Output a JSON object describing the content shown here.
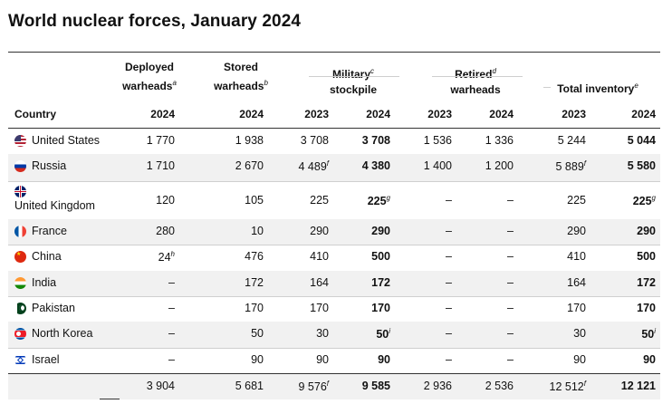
{
  "title": "World nuclear forces, January 2024",
  "headers": {
    "country": "Country",
    "deployed": {
      "line1": "Deployed",
      "line2": "warheads",
      "fn": "a"
    },
    "stored": {
      "line1": "Stored",
      "line2": "warheads",
      "fn": "b"
    },
    "military": {
      "line1": "Military",
      "fn": "c",
      "line2": "stockpile"
    },
    "retired": {
      "line1": "Retired",
      "fn": "d",
      "line2": "warheads"
    },
    "total": {
      "line1": "Total inventory",
      "fn": "e"
    }
  },
  "years": [
    "2024",
    "2024",
    "2023",
    "2024",
    "2023",
    "2024",
    "2023",
    "2024"
  ],
  "rows": [
    {
      "country": "United States",
      "flag": "us-flag-icon",
      "c": [
        [
          "1 770",
          ""
        ],
        [
          "1 938",
          ""
        ],
        [
          "3 708",
          ""
        ],
        [
          "3 708",
          ""
        ],
        [
          "1 536",
          ""
        ],
        [
          "1 336",
          ""
        ],
        [
          "5 244",
          ""
        ],
        [
          "5 044",
          ""
        ]
      ]
    },
    {
      "country": "Russia",
      "flag": "russia-flag-icon",
      "c": [
        [
          "1 710",
          ""
        ],
        [
          "2 670",
          ""
        ],
        [
          "4 489",
          "f"
        ],
        [
          "4 380",
          ""
        ],
        [
          "1 400",
          ""
        ],
        [
          "1 200",
          ""
        ],
        [
          "5 889",
          "f"
        ],
        [
          "5 580",
          ""
        ]
      ]
    },
    {
      "country": "United Kingdom",
      "flag": "uk-flag-icon",
      "c": [
        [
          "120",
          ""
        ],
        [
          "105",
          ""
        ],
        [
          "225",
          ""
        ],
        [
          "225",
          "g"
        ],
        [
          "–",
          ""
        ],
        [
          "–",
          ""
        ],
        [
          "225",
          ""
        ],
        [
          "225",
          "g"
        ]
      ]
    },
    {
      "country": "France",
      "flag": "france-flag-icon",
      "c": [
        [
          "280",
          ""
        ],
        [
          "10",
          ""
        ],
        [
          "290",
          ""
        ],
        [
          "290",
          ""
        ],
        [
          "–",
          ""
        ],
        [
          "–",
          ""
        ],
        [
          "290",
          ""
        ],
        [
          "290",
          ""
        ]
      ]
    },
    {
      "country": "China",
      "flag": "china-flag-icon",
      "c": [
        [
          "24",
          "h"
        ],
        [
          "476",
          ""
        ],
        [
          "410",
          ""
        ],
        [
          "500",
          ""
        ],
        [
          "–",
          ""
        ],
        [
          "–",
          ""
        ],
        [
          "410",
          ""
        ],
        [
          "500",
          ""
        ]
      ]
    },
    {
      "country": "India",
      "flag": "india-flag-icon",
      "c": [
        [
          "–",
          ""
        ],
        [
          "172",
          ""
        ],
        [
          "164",
          ""
        ],
        [
          "172",
          ""
        ],
        [
          "–",
          ""
        ],
        [
          "–",
          ""
        ],
        [
          "164",
          ""
        ],
        [
          "172",
          ""
        ]
      ]
    },
    {
      "country": "Pakistan",
      "flag": "pakistan-flag-icon",
      "c": [
        [
          "–",
          ""
        ],
        [
          "170",
          ""
        ],
        [
          "170",
          ""
        ],
        [
          "170",
          ""
        ],
        [
          "–",
          ""
        ],
        [
          "–",
          ""
        ],
        [
          "170",
          ""
        ],
        [
          "170",
          ""
        ]
      ]
    },
    {
      "country": "North Korea",
      "flag": "north-korea-flag-icon",
      "c": [
        [
          "–",
          ""
        ],
        [
          "50",
          ""
        ],
        [
          "30",
          ""
        ],
        [
          "50",
          "i"
        ],
        [
          "–",
          ""
        ],
        [
          "–",
          ""
        ],
        [
          "30",
          ""
        ],
        [
          "50",
          "i"
        ]
      ]
    },
    {
      "country": "Israel",
      "flag": "israel-flag-icon",
      "c": [
        [
          "–",
          ""
        ],
        [
          "90",
          ""
        ],
        [
          "90",
          ""
        ],
        [
          "90",
          ""
        ],
        [
          "–",
          ""
        ],
        [
          "–",
          ""
        ],
        [
          "90",
          ""
        ],
        [
          "90",
          ""
        ]
      ]
    }
  ],
  "totals": [
    [
      "3 904",
      ""
    ],
    [
      "5 681",
      ""
    ],
    [
      "9 576",
      "f"
    ],
    [
      "9 585",
      ""
    ],
    [
      "2 936",
      ""
    ],
    [
      "2 536",
      ""
    ],
    [
      "12 512",
      "f"
    ],
    [
      "12 121",
      ""
    ]
  ]
}
